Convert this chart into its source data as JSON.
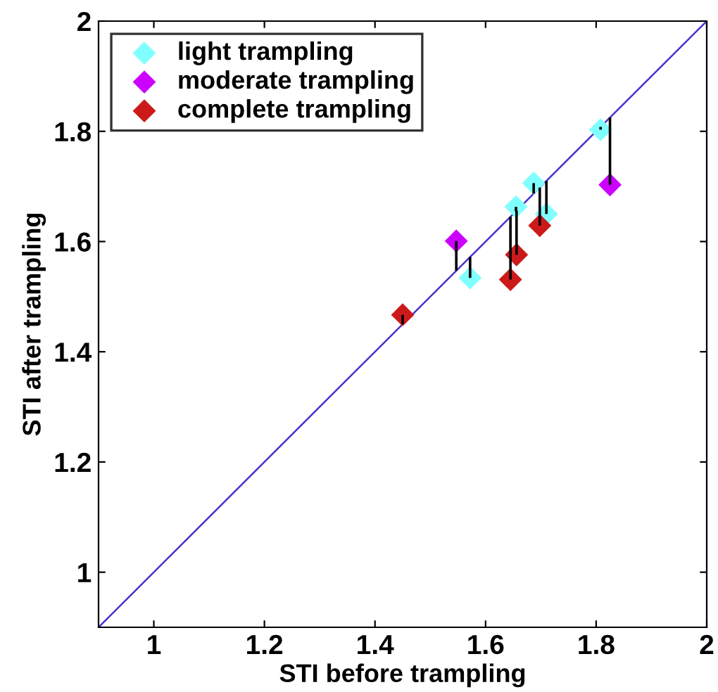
{
  "chart_data": {
    "type": "scatter",
    "xlabel": "STI before trampling",
    "ylabel": "STI after trampling",
    "xlim": [
      0.9,
      2
    ],
    "ylim": [
      0.9,
      2
    ],
    "xticks": [
      1,
      1.2,
      1.4,
      1.6,
      1.8,
      2
    ],
    "yticks": [
      1,
      1.2,
      1.4,
      1.6,
      1.8,
      2
    ],
    "grid": false,
    "legend": "top left",
    "marker": "diamond",
    "series": [
      {
        "type": "line",
        "color": "#4433cc",
        "x": [
          0.9,
          2
        ],
        "values": [
          0.9,
          2
        ],
        "marker": "none"
      },
      {
        "name": "light trampling",
        "color": "#80ffff",
        "x": [
          1.808,
          1.687,
          1.655,
          1.71,
          1.572
        ],
        "values": [
          1.803,
          1.706,
          1.663,
          1.65,
          1.534
        ],
        "errors": [
          [
            1.803,
            1.808
          ],
          [
            1.687,
            1.706
          ],
          [
            1.655,
            1.663
          ],
          [
            1.65,
            1.71
          ],
          [
            1.534,
            1.572
          ]
        ]
      },
      {
        "name": "moderate trampling",
        "color": "#cc00ff",
        "x": [
          1.547,
          1.825
        ],
        "values": [
          1.601,
          1.703
        ],
        "errors": [
          [
            1.547,
            1.601
          ],
          [
            1.703,
            1.825
          ]
        ]
      },
      {
        "name": "complete trampling",
        "color": "#cc1a1a",
        "x": [
          1.45,
          1.645,
          1.656,
          1.698
        ],
        "values": [
          1.467,
          1.531,
          1.576,
          1.629
        ],
        "errors": [
          [
            1.45,
            1.467
          ],
          [
            1.531,
            1.645
          ],
          [
            1.576,
            1.656
          ],
          [
            1.629,
            1.698
          ]
        ]
      }
    ]
  }
}
